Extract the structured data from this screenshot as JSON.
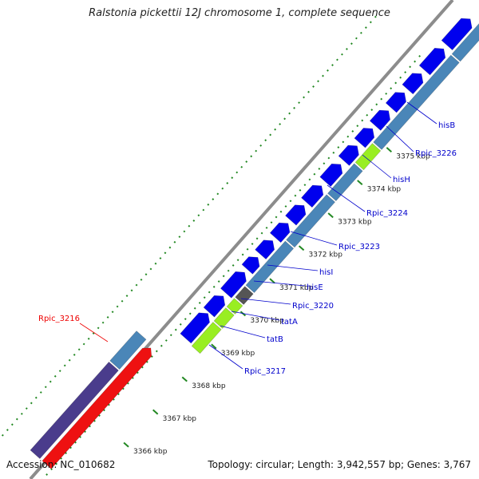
{
  "map": {
    "title": "Ralstonia pickettii 12J chromosome 1, complete sequence",
    "accession": "Accession: NC_010682",
    "summary": "Topology: circular; Length: 3,942,557 bp; Genes: 3,767"
  },
  "ticks": [
    {
      "label": "3366 kbp"
    },
    {
      "label": "3367 kbp"
    },
    {
      "label": "3368 kbp"
    },
    {
      "label": "3369 kbp"
    },
    {
      "label": "3370 kbp"
    },
    {
      "label": "3371 kbp"
    },
    {
      "label": "3372 kbp"
    },
    {
      "label": "3373 kbp"
    },
    {
      "label": "3374 kbp"
    },
    {
      "label": "3375 kbp"
    }
  ],
  "gene_labels": [
    {
      "text": "Rpic_3216",
      "color": "#ee0000"
    },
    {
      "text": "Rpic_3217",
      "color": "#0000cc"
    },
    {
      "text": "tatB",
      "color": "#0000cc"
    },
    {
      "text": "tatA",
      "color": "#0000cc"
    },
    {
      "text": "Rpic_3220",
      "color": "#0000cc"
    },
    {
      "text": "hisE",
      "color": "#0000cc"
    },
    {
      "text": "hisI",
      "color": "#0000cc"
    },
    {
      "text": "Rpic_3223",
      "color": "#0000cc"
    },
    {
      "text": "Rpic_3224",
      "color": "#0000cc"
    },
    {
      "text": "hisH",
      "color": "#0000cc"
    },
    {
      "text": "Rpic_3226",
      "color": "#0000cc"
    },
    {
      "text": "hisB",
      "color": "#0000cc"
    }
  ],
  "colors": {
    "backbone": "#8c8c8c",
    "gene_forward": "#0000ee",
    "gene_cds": "#4a86b8",
    "gene_rna": "#99ee22",
    "gene_other": "#555555",
    "gene_red": "#ee1111",
    "gene_purple": "#4a3c8c",
    "tick": "#228822"
  }
}
